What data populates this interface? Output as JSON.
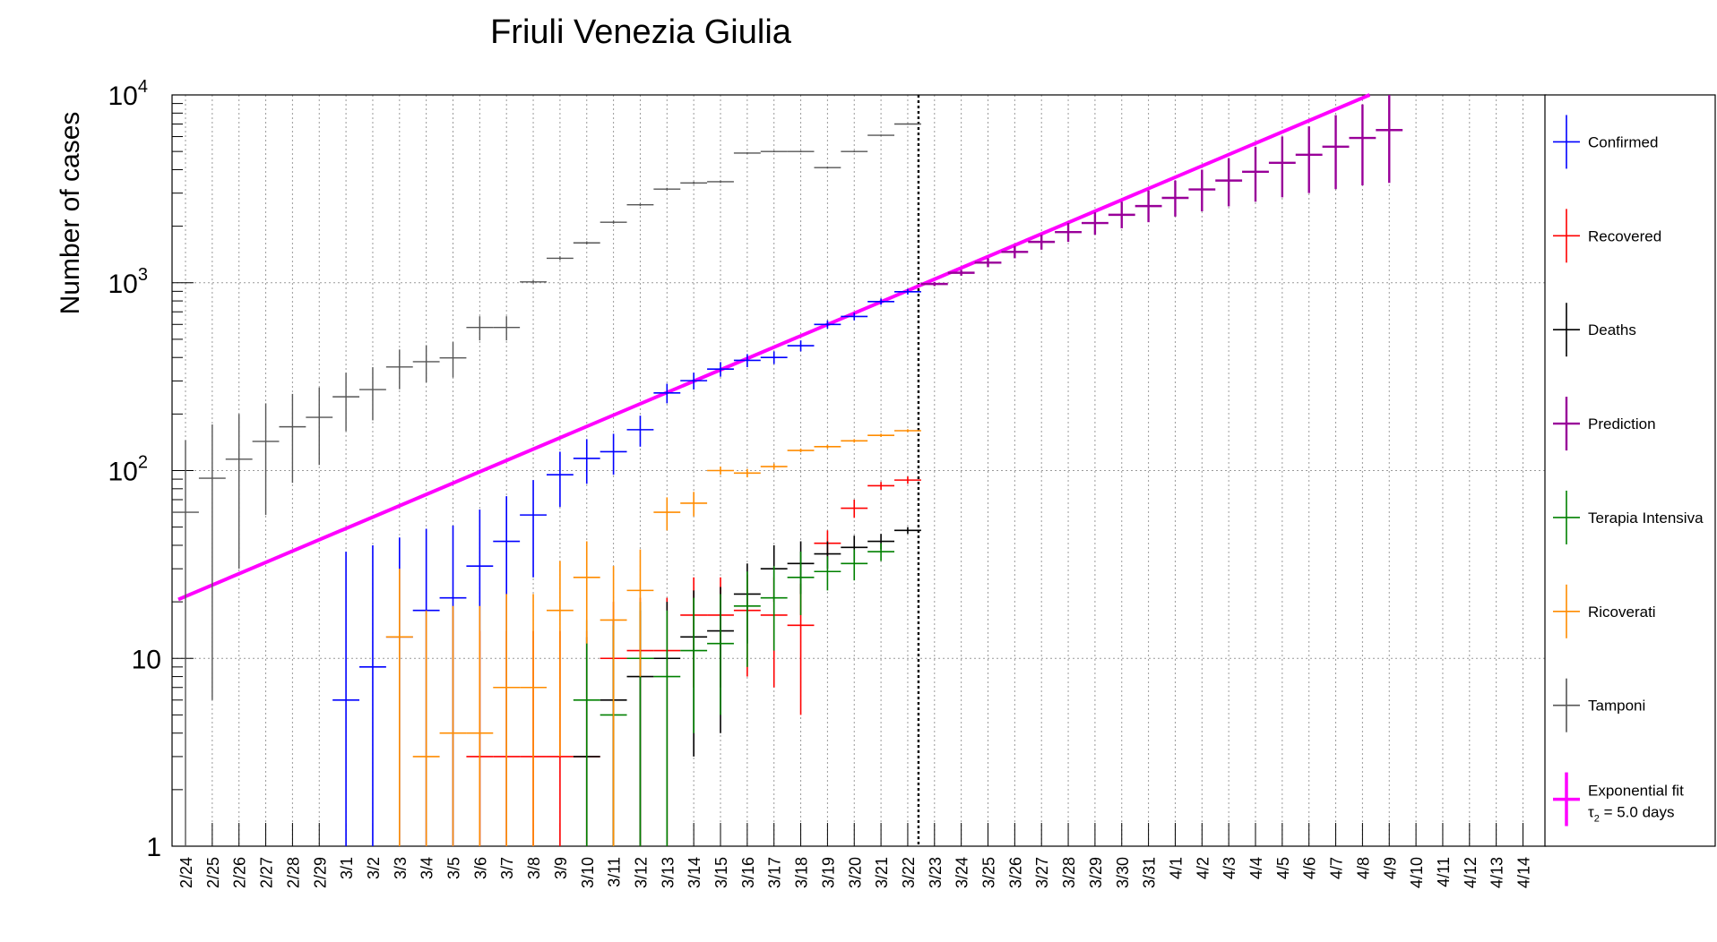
{
  "chart_data": {
    "type": "scatter",
    "title": "Friuli Venezia Giulia",
    "ylabel": "Number of cases",
    "xlabel": "",
    "yscale": "log",
    "ylim": [
      1,
      10000
    ],
    "y_ticks": [
      {
        "value": 1,
        "base": "1",
        "exp": ""
      },
      {
        "value": 10,
        "base": "10",
        "exp": ""
      },
      {
        "value": 100,
        "base": "10",
        "exp": "2"
      },
      {
        "value": 1000,
        "base": "10",
        "exp": "3"
      },
      {
        "value": 10000,
        "base": "10",
        "exp": "4"
      }
    ],
    "grid": true,
    "legend_position": "right",
    "categories": [
      "2/24",
      "2/25",
      "2/26",
      "2/27",
      "2/28",
      "2/29",
      "3/1",
      "3/2",
      "3/3",
      "3/4",
      "3/5",
      "3/6",
      "3/7",
      "3/8",
      "3/9",
      "3/10",
      "3/11",
      "3/12",
      "3/13",
      "3/14",
      "3/15",
      "3/16",
      "3/17",
      "3/18",
      "3/19",
      "3/20",
      "3/21",
      "3/22",
      "3/23",
      "3/24",
      "3/25",
      "3/26",
      "3/27",
      "3/28",
      "3/29",
      "3/30",
      "3/31",
      "4/1",
      "4/2",
      "4/3",
      "4/4",
      "4/5",
      "4/6",
      "4/7",
      "4/8",
      "4/9",
      "4/10",
      "4/11",
      "4/12",
      "4/13",
      "4/14"
    ],
    "vertical_marker": "3/22",
    "series": [
      {
        "name": "Confirmed",
        "color": "#0000ff",
        "width": 1.6,
        "points": [
          {
            "x": "3/1",
            "y": 6,
            "lo": 1,
            "hi": 37
          },
          {
            "x": "3/2",
            "y": 9,
            "lo": 1,
            "hi": 40
          },
          {
            "x": "3/3",
            "y": 13,
            "lo": 1,
            "hi": 44
          },
          {
            "x": "3/4",
            "y": 18,
            "lo": 1,
            "hi": 49
          },
          {
            "x": "3/5",
            "y": 21,
            "lo": 1,
            "hi": 51
          },
          {
            "x": "3/6",
            "y": 31,
            "lo": 1,
            "hi": 62
          },
          {
            "x": "3/7",
            "y": 42,
            "lo": 1,
            "hi": 73
          },
          {
            "x": "3/8",
            "y": 58,
            "lo": 27,
            "hi": 89
          },
          {
            "x": "3/9",
            "y": 95,
            "lo": 64,
            "hi": 126
          },
          {
            "x": "3/10",
            "y": 116,
            "lo": 85,
            "hi": 147
          },
          {
            "x": "3/11",
            "y": 126,
            "lo": 95,
            "hi": 157
          },
          {
            "x": "3/12",
            "y": 165,
            "lo": 134,
            "hi": 196
          },
          {
            "x": "3/13",
            "y": 259,
            "lo": 228,
            "hi": 290
          },
          {
            "x": "3/14",
            "y": 301,
            "lo": 270,
            "hi": 332
          },
          {
            "x": "3/15",
            "y": 347,
            "lo": 316,
            "hi": 378
          },
          {
            "x": "3/16",
            "y": 386,
            "lo": 355,
            "hi": 417
          },
          {
            "x": "3/17",
            "y": 400,
            "lo": 369,
            "hi": 431
          },
          {
            "x": "3/18",
            "y": 462,
            "lo": 431,
            "hi": 493
          },
          {
            "x": "3/19",
            "y": 600,
            "lo": 570,
            "hi": 630
          },
          {
            "x": "3/20",
            "y": 661,
            "lo": 630,
            "hi": 692
          },
          {
            "x": "3/21",
            "y": 794,
            "lo": 763,
            "hi": 825
          },
          {
            "x": "3/22",
            "y": 895,
            "lo": 864,
            "hi": 926
          }
        ]
      },
      {
        "name": "Recovered",
        "color": "#ff0000",
        "width": 1.6,
        "points": [
          {
            "x": "3/6",
            "y": 3,
            "lo": 1,
            "hi": 14
          },
          {
            "x": "3/7",
            "y": 3,
            "lo": 1,
            "hi": 14
          },
          {
            "x": "3/8",
            "y": 3,
            "lo": 1,
            "hi": 14
          },
          {
            "x": "3/9",
            "y": 3,
            "lo": 1,
            "hi": 14
          },
          {
            "x": "3/10",
            "y": 3,
            "lo": 1,
            "hi": 14
          },
          {
            "x": "3/11",
            "y": 10,
            "lo": 1,
            "hi": 20
          },
          {
            "x": "3/12",
            "y": 11,
            "lo": 1,
            "hi": 21
          },
          {
            "x": "3/13",
            "y": 11,
            "lo": 1,
            "hi": 21
          },
          {
            "x": "3/14",
            "y": 17,
            "lo": 7,
            "hi": 27
          },
          {
            "x": "3/15",
            "y": 17,
            "lo": 7,
            "hi": 27
          },
          {
            "x": "3/16",
            "y": 18,
            "lo": 8,
            "hi": 28
          },
          {
            "x": "3/17",
            "y": 17,
            "lo": 7,
            "hi": 27
          },
          {
            "x": "3/18",
            "y": 15,
            "lo": 5,
            "hi": 25
          },
          {
            "x": "3/19",
            "y": 41,
            "lo": 35,
            "hi": 48
          },
          {
            "x": "3/20",
            "y": 63,
            "lo": 56,
            "hi": 70
          },
          {
            "x": "3/21",
            "y": 83,
            "lo": 79,
            "hi": 87
          },
          {
            "x": "3/22",
            "y": 89,
            "lo": 85,
            "hi": 93
          }
        ]
      },
      {
        "name": "Deaths",
        "color": "#000000",
        "width": 1.6,
        "points": [
          {
            "x": "3/10",
            "y": 3,
            "lo": 1,
            "hi": 13
          },
          {
            "x": "3/11",
            "y": 6,
            "lo": 1,
            "hi": 16
          },
          {
            "x": "3/12",
            "y": 8,
            "lo": 1,
            "hi": 18
          },
          {
            "x": "3/13",
            "y": 10,
            "lo": 1,
            "hi": 20
          },
          {
            "x": "3/14",
            "y": 13,
            "lo": 3,
            "hi": 23
          },
          {
            "x": "3/15",
            "y": 14,
            "lo": 4,
            "hi": 24
          },
          {
            "x": "3/16",
            "y": 22,
            "lo": 12,
            "hi": 32
          },
          {
            "x": "3/17",
            "y": 30,
            "lo": 20,
            "hi": 40
          },
          {
            "x": "3/18",
            "y": 32,
            "lo": 22,
            "hi": 42
          },
          {
            "x": "3/19",
            "y": 36,
            "lo": 30,
            "hi": 42
          },
          {
            "x": "3/20",
            "y": 39,
            "lo": 33,
            "hi": 45
          },
          {
            "x": "3/21",
            "y": 42,
            "lo": 38,
            "hi": 46
          },
          {
            "x": "3/22",
            "y": 48,
            "lo": 46,
            "hi": 50
          }
        ]
      },
      {
        "name": "Terapia Intensiva",
        "color": "#008000",
        "width": 1.6,
        "points": [
          {
            "x": "3/10",
            "y": 6,
            "lo": 1,
            "hi": 16
          },
          {
            "x": "3/11",
            "y": 5,
            "lo": 1,
            "hi": 15
          },
          {
            "x": "3/12",
            "y": 10,
            "lo": 1,
            "hi": 20
          },
          {
            "x": "3/13",
            "y": 8,
            "lo": 1,
            "hi": 18
          },
          {
            "x": "3/14",
            "y": 11,
            "lo": 4,
            "hi": 21
          },
          {
            "x": "3/15",
            "y": 12,
            "lo": 5,
            "hi": 22
          },
          {
            "x": "3/16",
            "y": 19,
            "lo": 9,
            "hi": 29
          },
          {
            "x": "3/17",
            "y": 21,
            "lo": 11,
            "hi": 31
          },
          {
            "x": "3/18",
            "y": 27,
            "lo": 17,
            "hi": 37
          },
          {
            "x": "3/19",
            "y": 29,
            "lo": 23,
            "hi": 35
          },
          {
            "x": "3/20",
            "y": 32,
            "lo": 26,
            "hi": 38
          },
          {
            "x": "3/21",
            "y": 37,
            "lo": 33,
            "hi": 41
          }
        ]
      },
      {
        "name": "Ricoverati",
        "color": "#ff8c00",
        "width": 1.6,
        "points": [
          {
            "x": "3/3",
            "y": 13,
            "lo": 1,
            "hi": 30
          },
          {
            "x": "3/4",
            "y": 3,
            "lo": 1,
            "hi": 18
          },
          {
            "x": "3/5",
            "y": 4,
            "lo": 1,
            "hi": 19
          },
          {
            "x": "3/6",
            "y": 4,
            "lo": 1,
            "hi": 19
          },
          {
            "x": "3/7",
            "y": 7,
            "lo": 1,
            "hi": 22
          },
          {
            "x": "3/8",
            "y": 7,
            "lo": 1,
            "hi": 22
          },
          {
            "x": "3/9",
            "y": 18,
            "lo": 3,
            "hi": 33
          },
          {
            "x": "3/10",
            "y": 27,
            "lo": 12,
            "hi": 42
          },
          {
            "x": "3/11",
            "y": 16,
            "lo": 1,
            "hi": 31
          },
          {
            "x": "3/12",
            "y": 23,
            "lo": 8,
            "hi": 38
          },
          {
            "x": "3/13",
            "y": 60,
            "lo": 48,
            "hi": 72
          },
          {
            "x": "3/14",
            "y": 67,
            "lo": 57,
            "hi": 77
          },
          {
            "x": "3/15",
            "y": 100,
            "lo": 95,
            "hi": 105
          },
          {
            "x": "3/16",
            "y": 97,
            "lo": 92,
            "hi": 102
          },
          {
            "x": "3/17",
            "y": 105,
            "lo": 101,
            "hi": 109
          },
          {
            "x": "3/18",
            "y": 128,
            "lo": 125,
            "hi": 131
          },
          {
            "x": "3/19",
            "y": 134,
            "lo": 131,
            "hi": 137
          },
          {
            "x": "3/20",
            "y": 144,
            "lo": 141,
            "hi": 147
          },
          {
            "x": "3/21",
            "y": 154,
            "lo": 151,
            "hi": 157
          },
          {
            "x": "3/22",
            "y": 163,
            "lo": 160,
            "hi": 166
          }
        ]
      },
      {
        "name": "Tamponi",
        "color": "#555555",
        "width": 1.4,
        "points": [
          {
            "x": "2/24",
            "y": 60,
            "lo": 1,
            "hi": 145
          },
          {
            "x": "2/25",
            "y": 91,
            "lo": 6,
            "hi": 176
          },
          {
            "x": "2/26",
            "y": 115,
            "lo": 30,
            "hi": 200
          },
          {
            "x": "2/27",
            "y": 143,
            "lo": 58,
            "hi": 228
          },
          {
            "x": "2/28",
            "y": 171,
            "lo": 86,
            "hi": 256
          },
          {
            "x": "2/29",
            "y": 192,
            "lo": 107,
            "hi": 277
          },
          {
            "x": "3/1",
            "y": 247,
            "lo": 162,
            "hi": 332
          },
          {
            "x": "3/2",
            "y": 270,
            "lo": 185,
            "hi": 355
          },
          {
            "x": "3/3",
            "y": 356,
            "lo": 271,
            "hi": 441
          },
          {
            "x": "3/4",
            "y": 380,
            "lo": 295,
            "hi": 465
          },
          {
            "x": "3/5",
            "y": 398,
            "lo": 313,
            "hi": 483
          },
          {
            "x": "3/6",
            "y": 578,
            "lo": 493,
            "hi": 663
          },
          {
            "x": "3/7",
            "y": 578,
            "lo": 493,
            "hi": 663
          },
          {
            "x": "3/8",
            "y": 1010,
            "lo": 990,
            "hi": 1030
          },
          {
            "x": "3/9",
            "y": 1350,
            "lo": 1320,
            "hi": 1380
          },
          {
            "x": "3/10",
            "y": 1630,
            "lo": 1600,
            "hi": 1660
          },
          {
            "x": "3/11",
            "y": 2100,
            "lo": 2060,
            "hi": 2140
          },
          {
            "x": "3/12",
            "y": 2600,
            "lo": 2560,
            "hi": 2640
          },
          {
            "x": "3/13",
            "y": 3150,
            "lo": 3100,
            "hi": 3200
          },
          {
            "x": "3/14",
            "y": 3400,
            "lo": 3350,
            "hi": 3450
          },
          {
            "x": "3/15",
            "y": 3450,
            "lo": 3400,
            "hi": 3500
          },
          {
            "x": "3/16",
            "y": 4900,
            "lo": 4850,
            "hi": 4950
          },
          {
            "x": "3/17",
            "y": 5000,
            "lo": 4950,
            "hi": 5050
          },
          {
            "x": "3/18",
            "y": 5000,
            "lo": 4950,
            "hi": 5050
          },
          {
            "x": "3/19",
            "y": 4100,
            "lo": 4050,
            "hi": 4150
          },
          {
            "x": "3/20",
            "y": 5000,
            "lo": 4950,
            "hi": 5050
          },
          {
            "x": "3/21",
            "y": 6100,
            "lo": 6050,
            "hi": 6150
          },
          {
            "x": "3/22",
            "y": 7000,
            "lo": 6950,
            "hi": 7050
          }
        ]
      },
      {
        "name": "Prediction",
        "color": "#990099",
        "width": 2.4,
        "points": [
          {
            "x": "3/23",
            "y": 985,
            "lo": 960,
            "hi": 1010
          },
          {
            "x": "3/24",
            "y": 1130,
            "lo": 1090,
            "hi": 1170
          },
          {
            "x": "3/25",
            "y": 1280,
            "lo": 1210,
            "hi": 1350
          },
          {
            "x": "3/26",
            "y": 1460,
            "lo": 1350,
            "hi": 1570
          },
          {
            "x": "3/27",
            "y": 1650,
            "lo": 1500,
            "hi": 1800
          },
          {
            "x": "3/28",
            "y": 1860,
            "lo": 1650,
            "hi": 2080
          },
          {
            "x": "3/29",
            "y": 2080,
            "lo": 1800,
            "hi": 2370
          },
          {
            "x": "3/30",
            "y": 2300,
            "lo": 1950,
            "hi": 2700
          },
          {
            "x": "3/31",
            "y": 2560,
            "lo": 2100,
            "hi": 3100
          },
          {
            "x": "4/1",
            "y": 2830,
            "lo": 2250,
            "hi": 3500
          },
          {
            "x": "4/2",
            "y": 3140,
            "lo": 2400,
            "hi": 4000
          },
          {
            "x": "4/3",
            "y": 3500,
            "lo": 2550,
            "hi": 4600
          },
          {
            "x": "4/4",
            "y": 3900,
            "lo": 2700,
            "hi": 5300
          },
          {
            "x": "4/5",
            "y": 4350,
            "lo": 2850,
            "hi": 6000
          },
          {
            "x": "4/6",
            "y": 4800,
            "lo": 3000,
            "hi": 6800
          },
          {
            "x": "4/7",
            "y": 5300,
            "lo": 3150,
            "hi": 7800
          },
          {
            "x": "4/8",
            "y": 5900,
            "lo": 3300,
            "hi": 8900
          },
          {
            "x": "4/9",
            "y": 6500,
            "lo": 3400,
            "hi": 10000
          }
        ]
      }
    ],
    "fit": {
      "name": "Exponential fit",
      "label_tau": "τ",
      "label_sub": "2",
      "label_rest": " = 5.0 days",
      "color": "#ff00ff",
      "x_start": "2/24",
      "y_start": 20.6,
      "x_end": "4/8",
      "y_end": 10000
    },
    "legend": [
      {
        "label": "Confirmed",
        "color": "#0000ff"
      },
      {
        "label": "Recovered",
        "color": "#ff0000"
      },
      {
        "label": "Deaths",
        "color": "#000000"
      },
      {
        "label": "Prediction",
        "color": "#990099"
      },
      {
        "label": "Terapia Intensiva",
        "color": "#008000"
      },
      {
        "label": "Ricoverati",
        "color": "#ff8c00"
      },
      {
        "label": "Tamponi",
        "color": "#555555"
      },
      {
        "label": "Exponential fit",
        "color": "#ff00ff"
      }
    ]
  }
}
